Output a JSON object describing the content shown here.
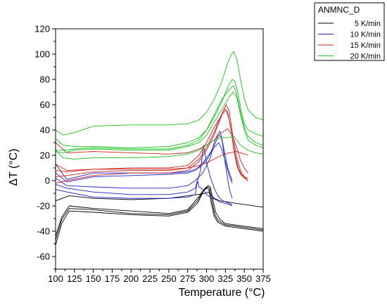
{
  "chart_data": {
    "type": "line",
    "title": "",
    "xlabel": "Temperature (°C)",
    "ylabel": "ΔT (°C)",
    "xlim": [
      100,
      375
    ],
    "ylim": [
      -70,
      120
    ],
    "xticks": [
      "100",
      "125",
      "150",
      "175",
      "200",
      "225",
      "250",
      "275",
      "300",
      "325",
      "350",
      "375"
    ],
    "yticks": [
      "-60",
      "-40",
      "-20",
      "0",
      "20",
      "40",
      "60",
      "80",
      "100",
      "120"
    ],
    "legend": {
      "title": "ANMNC_D",
      "placement": "top-right",
      "entries": [
        "5 K/min",
        "10 K/min",
        "15 K/min",
        "20 K/min"
      ]
    },
    "colors": {
      "5 K/min": "#000000",
      "10 K/min": "#1f1fd0",
      "15 K/min": "#c8201a",
      "20 K/min": "#18c018"
    },
    "grid": false,
    "series": [
      {
        "name": "5 K/min",
        "runs": [
          {
            "x": [
              100,
              108,
              118,
              150,
              200,
              250,
              275,
              288,
              296,
              300,
              303,
              306,
              310,
              315,
              325,
              350,
              375
            ],
            "y": [
              -51,
              -34,
              -24,
              -25,
              -27,
              -28,
              -25,
              -18,
              -8,
              -6,
              -7,
              -17,
              -28,
              -33,
              -36,
              -38,
              -40
            ]
          },
          {
            "x": [
              100,
              108,
              118,
              150,
              200,
              250,
              275,
              288,
              297,
              301,
              304,
              307,
              311,
              316,
              325,
              350,
              375
            ],
            "y": [
              -47,
              -31,
              -22,
              -23,
              -26,
              -27,
              -24,
              -16,
              -7,
              -5,
              -6,
              -16,
              -27,
              -32,
              -35,
              -37,
              -39
            ]
          },
          {
            "x": [
              100,
              108,
              118,
              150,
              200,
              250,
              275,
              288,
              298,
              302,
              305,
              308,
              312,
              318,
              325,
              350,
              375
            ],
            "y": [
              -44,
              -29,
              -20,
              -22,
              -24,
              -26,
              -23,
              -14,
              -6,
              -4,
              -5,
              -14,
              -25,
              -31,
              -34,
              -36,
              -38
            ]
          },
          {
            "x": [
              100,
              118,
              150,
              200,
              250,
              275,
              288,
              298,
              303,
              306,
              310,
              318,
              340,
              375
            ],
            "y": [
              -16,
              -12,
              -14,
              -15,
              -14,
              -12,
              -11,
              -10,
              -9,
              -11,
              -14,
              -16,
              -18,
              -21
            ]
          }
        ]
      },
      {
        "name": "10 K/min",
        "runs": [
          {
            "x": [
              100,
              115,
              150,
              200,
              250,
              275,
              285,
              288,
              290,
              293,
              297,
              300,
              305,
              308,
              312,
              318,
              325,
              330,
              334
            ],
            "y": [
              -7,
              -9,
              -13,
              -14,
              -14,
              -13,
              -11,
              0,
              -5,
              -6,
              -8,
              -11,
              -13,
              -14,
              -15,
              -17,
              -18,
              -19,
              -20
            ]
          },
          {
            "x": [
              100,
              115,
              150,
              200,
              250,
              275,
              285,
              292,
              296,
              300,
              305,
              310,
              315,
              318,
              322,
              326,
              330,
              334
            ],
            "y": [
              -3,
              -6,
              -9,
              -11,
              -11,
              -9,
              -6,
              8,
              28,
              14,
              3,
              -6,
              -12,
              -14,
              -16,
              -17,
              -18,
              -19
            ]
          },
          {
            "x": [
              100,
              115,
              150,
              200,
              250,
              275,
              285,
              295,
              305,
              310,
              315,
              318,
              321,
              325,
              330,
              334
            ],
            "y": [
              2,
              -4,
              -5,
              -6,
              -6,
              -4,
              0,
              6,
              18,
              30,
              37,
              39,
              30,
              12,
              -6,
              -14
            ]
          },
          {
            "x": [
              100,
              115,
              150,
              200,
              250,
              275,
              285,
              295,
              305,
              312,
              316,
              320,
              324,
              328,
              334
            ],
            "y": [
              6,
              -1,
              3,
              4,
              5,
              6,
              8,
              14,
              22,
              30,
              36,
              34,
              22,
              10,
              0
            ]
          },
          {
            "x": [
              100,
              115,
              150,
              200,
              250,
              275,
              290,
              300,
              310,
              316,
              320,
              325,
              330,
              334
            ],
            "y": [
              13,
              1,
              6,
              6,
              6,
              7,
              10,
              16,
              26,
              30,
              25,
              15,
              4,
              -2
            ]
          }
        ]
      },
      {
        "name": "15 K/min",
        "runs": [
          {
            "x": [
              100,
              115,
              150,
              200,
              250,
              275,
              290,
              300,
              310,
              318,
              322,
              326,
              330,
              335,
              340,
              345,
              350,
              355
            ],
            "y": [
              -2,
              0,
              4,
              6,
              6,
              8,
              15,
              24,
              36,
              48,
              55,
              60,
              55,
              35,
              18,
              8,
              3,
              0
            ]
          },
          {
            "x": [
              100,
              115,
              150,
              200,
              250,
              275,
              290,
              300,
              310,
              318,
              324,
              328,
              332,
              336,
              340,
              345,
              350,
              355
            ],
            "y": [
              3,
              4,
              7,
              8,
              8,
              10,
              17,
              26,
              38,
              50,
              57,
              54,
              42,
              25,
              12,
              5,
              2,
              0
            ]
          },
          {
            "x": [
              100,
              115,
              150,
              200,
              250,
              275,
              290,
              300,
              310,
              320,
              326,
              330,
              334,
              338,
              342,
              346,
              350,
              355
            ],
            "y": [
              8,
              7,
              9,
              10,
              10,
              12,
              20,
              30,
              42,
              52,
              56,
              48,
              34,
              20,
              10,
              5,
              3,
              2
            ]
          },
          {
            "x": [
              100,
              115,
              150,
              200,
              250,
              275,
              290,
              300,
              310,
              320,
              328,
              334,
              340,
              345,
              350,
              355
            ],
            "y": [
              30,
              22,
              23,
              22,
              21,
              22,
              25,
              28,
              32,
              38,
              41,
              36,
              26,
              16,
              10,
              6
            ]
          },
          {
            "x": [
              100,
              115,
              150,
              200,
              250,
              275,
              290,
              300,
              310,
              320,
              330,
              340,
              345,
              350,
              355
            ],
            "y": [
              13,
              8,
              9,
              9,
              9,
              10,
              12,
              14,
              17,
              20,
              22,
              23,
              22,
              21,
              20
            ]
          }
        ]
      },
      {
        "name": "20 K/min",
        "runs": [
          {
            "x": [
              100,
              110,
              125,
              150,
              200,
              250,
              275,
              290,
              300,
              310,
              320,
              328,
              333,
              336,
              340,
              345,
              350,
              355,
              365,
              375
            ],
            "y": [
              40,
              36,
              38,
              43,
              44,
              44,
              45,
              48,
              54,
              64,
              78,
              93,
              100,
              102,
              96,
              80,
              65,
              56,
              50,
              48
            ]
          },
          {
            "x": [
              100,
              110,
              125,
              150,
              200,
              250,
              275,
              290,
              300,
              310,
              320,
              328,
              334,
              338,
              342,
              346,
              350,
              355,
              365,
              375
            ],
            "y": [
              24,
              24,
              25,
              26,
              25,
              25,
              28,
              32,
              40,
              50,
              62,
              74,
              80,
              78,
              68,
              55,
              45,
              40,
              37,
              35
            ]
          },
          {
            "x": [
              100,
              110,
              125,
              150,
              200,
              250,
              275,
              290,
              300,
              310,
              320,
              330,
              335,
              340,
              345,
              350,
              355,
              365,
              375
            ],
            "y": [
              23,
              22,
              24,
              25,
              24,
              24,
              27,
              30,
              36,
              46,
              56,
              66,
              70,
              66,
              52,
              40,
              32,
              28,
              26
            ]
          },
          {
            "x": [
              100,
              110,
              125,
              150,
              200,
              250,
              275,
              290,
              300,
              310,
              320,
              330,
              336,
              340,
              345,
              350,
              355,
              365,
              375
            ],
            "y": [
              33,
              28,
              27,
              27,
              26,
              27,
              30,
              34,
              40,
              52,
              64,
              72,
              75,
              68,
              54,
              42,
              35,
              30,
              28
            ]
          },
          {
            "x": [
              100,
              110,
              125,
              150,
              200,
              250,
              275,
              290,
              300,
              310,
              320,
              330,
              336,
              340,
              345,
              350,
              355,
              365,
              375
            ],
            "y": [
              24,
              18,
              17,
              18,
              18,
              19,
              21,
              24,
              28,
              32,
              34,
              34,
              35,
              32,
              28,
              26,
              24,
              22,
              21
            ]
          }
        ]
      }
    ]
  }
}
